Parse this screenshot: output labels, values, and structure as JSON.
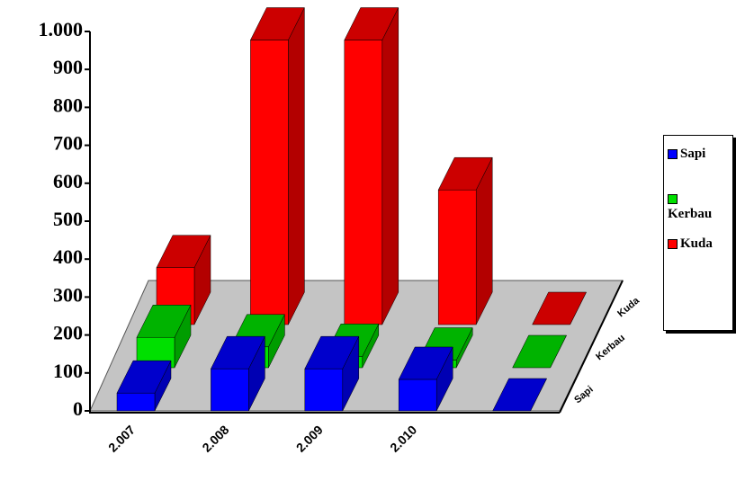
{
  "chart_data": {
    "type": "bar3d",
    "categories": [
      "2.007",
      "2.008",
      "2.009",
      "2.010",
      null
    ],
    "series": [
      {
        "name": "Sapi",
        "color": "#0000ff",
        "values": [
          47,
          111,
          111,
          83,
          0
        ]
      },
      {
        "name": "Kerbau",
        "color": "#00e000",
        "values": [
          80,
          55,
          30,
          20,
          0
        ]
      },
      {
        "name": "Kuda",
        "color": "#ff0000",
        "values": [
          150,
          750,
          750,
          355,
          0
        ]
      }
    ],
    "ylim": [
      0,
      1000
    ],
    "yticks": [
      0,
      100,
      200,
      300,
      400,
      500,
      600,
      700,
      800,
      900,
      {
        "value": 1000,
        "label": "1.000"
      }
    ],
    "legend": "right"
  }
}
